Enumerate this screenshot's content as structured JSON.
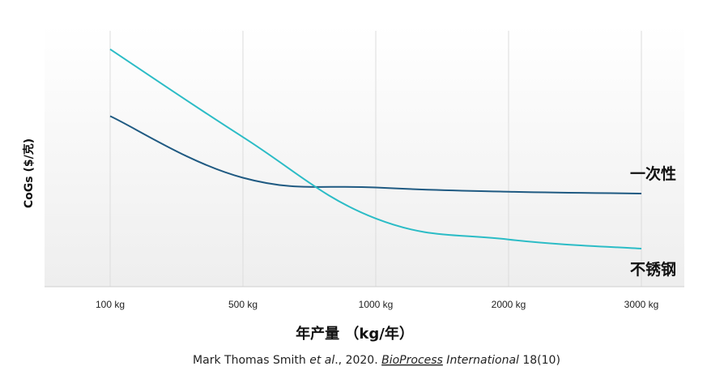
{
  "chart_data": {
    "type": "line",
    "categories": [
      "100 kg",
      "500 kg",
      "1000 kg",
      "2000 kg",
      "3000 kg"
    ],
    "ylabel": "CoGs ($/克)",
    "xlabel": "年产量 （kg/年）",
    "y_ticks_shown": false,
    "series": [
      {
        "name": "一次性",
        "color": "#1f5a82",
        "values": [
          6.5,
          4.15,
          3.78,
          3.62,
          3.55
        ]
      },
      {
        "name": "不锈钢",
        "color": "#2bbcc6",
        "values": [
          9.05,
          5.7,
          2.6,
          1.8,
          1.45
        ]
      }
    ],
    "ylim": [
      0,
      10
    ],
    "grid": "vertical"
  },
  "citation": {
    "author": "Mark Thomas Smith ",
    "etal": "et al",
    "year": "., 2020. ",
    "journal_a": "BioProcess",
    "journal_b": " International",
    "volume": " 18(10)"
  }
}
